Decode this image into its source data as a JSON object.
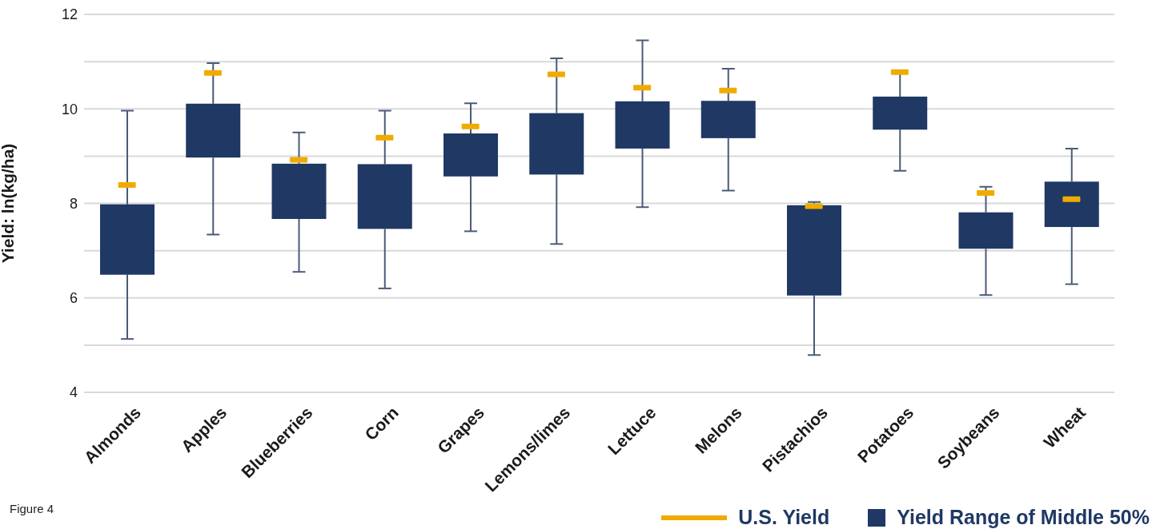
{
  "chart_data": {
    "type": "bar",
    "ylabel": "Yield: ln(kg/ha)",
    "annotations": [
      "Figure 4"
    ],
    "categories": [
      "Almonds",
      "Apples",
      "Blueberries",
      "Corn",
      "Grapes",
      "Lemons/limes",
      "Lettuce",
      "Melons",
      "Pistachios",
      "Potatoes",
      "Soybeans",
      "Wheat"
    ],
    "series": [
      {
        "name": "U.S. Yield",
        "type": "scatter",
        "color": "#f0ab00",
        "x": [
          "Almonds",
          "Apples",
          "Blueberries",
          "Corn",
          "Grapes",
          "Lemons/limes",
          "Lettuce",
          "Melons",
          "Pistachios",
          "Potatoes",
          "Soybeans",
          "Wheat"
        ],
        "values": [
          8.39,
          10.76,
          8.92,
          9.39,
          9.63,
          10.73,
          10.45,
          10.39,
          7.94,
          10.78,
          8.22,
          8.09
        ]
      },
      {
        "name": "Yield Range of Middle 50%",
        "color": "#1f3864",
        "base": [
          6.49,
          8.97,
          7.67,
          7.46,
          8.57,
          8.61,
          9.16,
          9.38,
          6.05,
          9.56,
          7.04,
          7.5
        ],
        "values": [
          1.49,
          1.14,
          1.17,
          1.37,
          0.91,
          1.3,
          1.0,
          0.79,
          1.91,
          0.7,
          0.77,
          0.96
        ],
        "errors": [
          [
            5.13,
            9.96
          ],
          [
            7.34,
            10.97
          ],
          [
            6.55,
            9.5
          ],
          [
            6.2,
            9.96
          ],
          [
            7.41,
            10.12
          ],
          [
            7.14,
            11.07
          ],
          [
            7.92,
            11.45
          ],
          [
            8.27,
            10.85
          ],
          [
            4.79,
            8.03
          ],
          [
            8.69,
            10.81
          ],
          [
            6.06,
            8.35
          ],
          [
            6.29,
            9.16
          ]
        ]
      }
    ],
    "ylim": [
      4,
      12
    ],
    "yticks": [
      4,
      {
        "value": 5,
        "label": null
      },
      6,
      {
        "value": 7,
        "label": null
      },
      8,
      {
        "value": 9,
        "label": null
      },
      10,
      {
        "value": 11,
        "label": null
      },
      12
    ],
    "grid": "y",
    "legend": "bottom right"
  }
}
